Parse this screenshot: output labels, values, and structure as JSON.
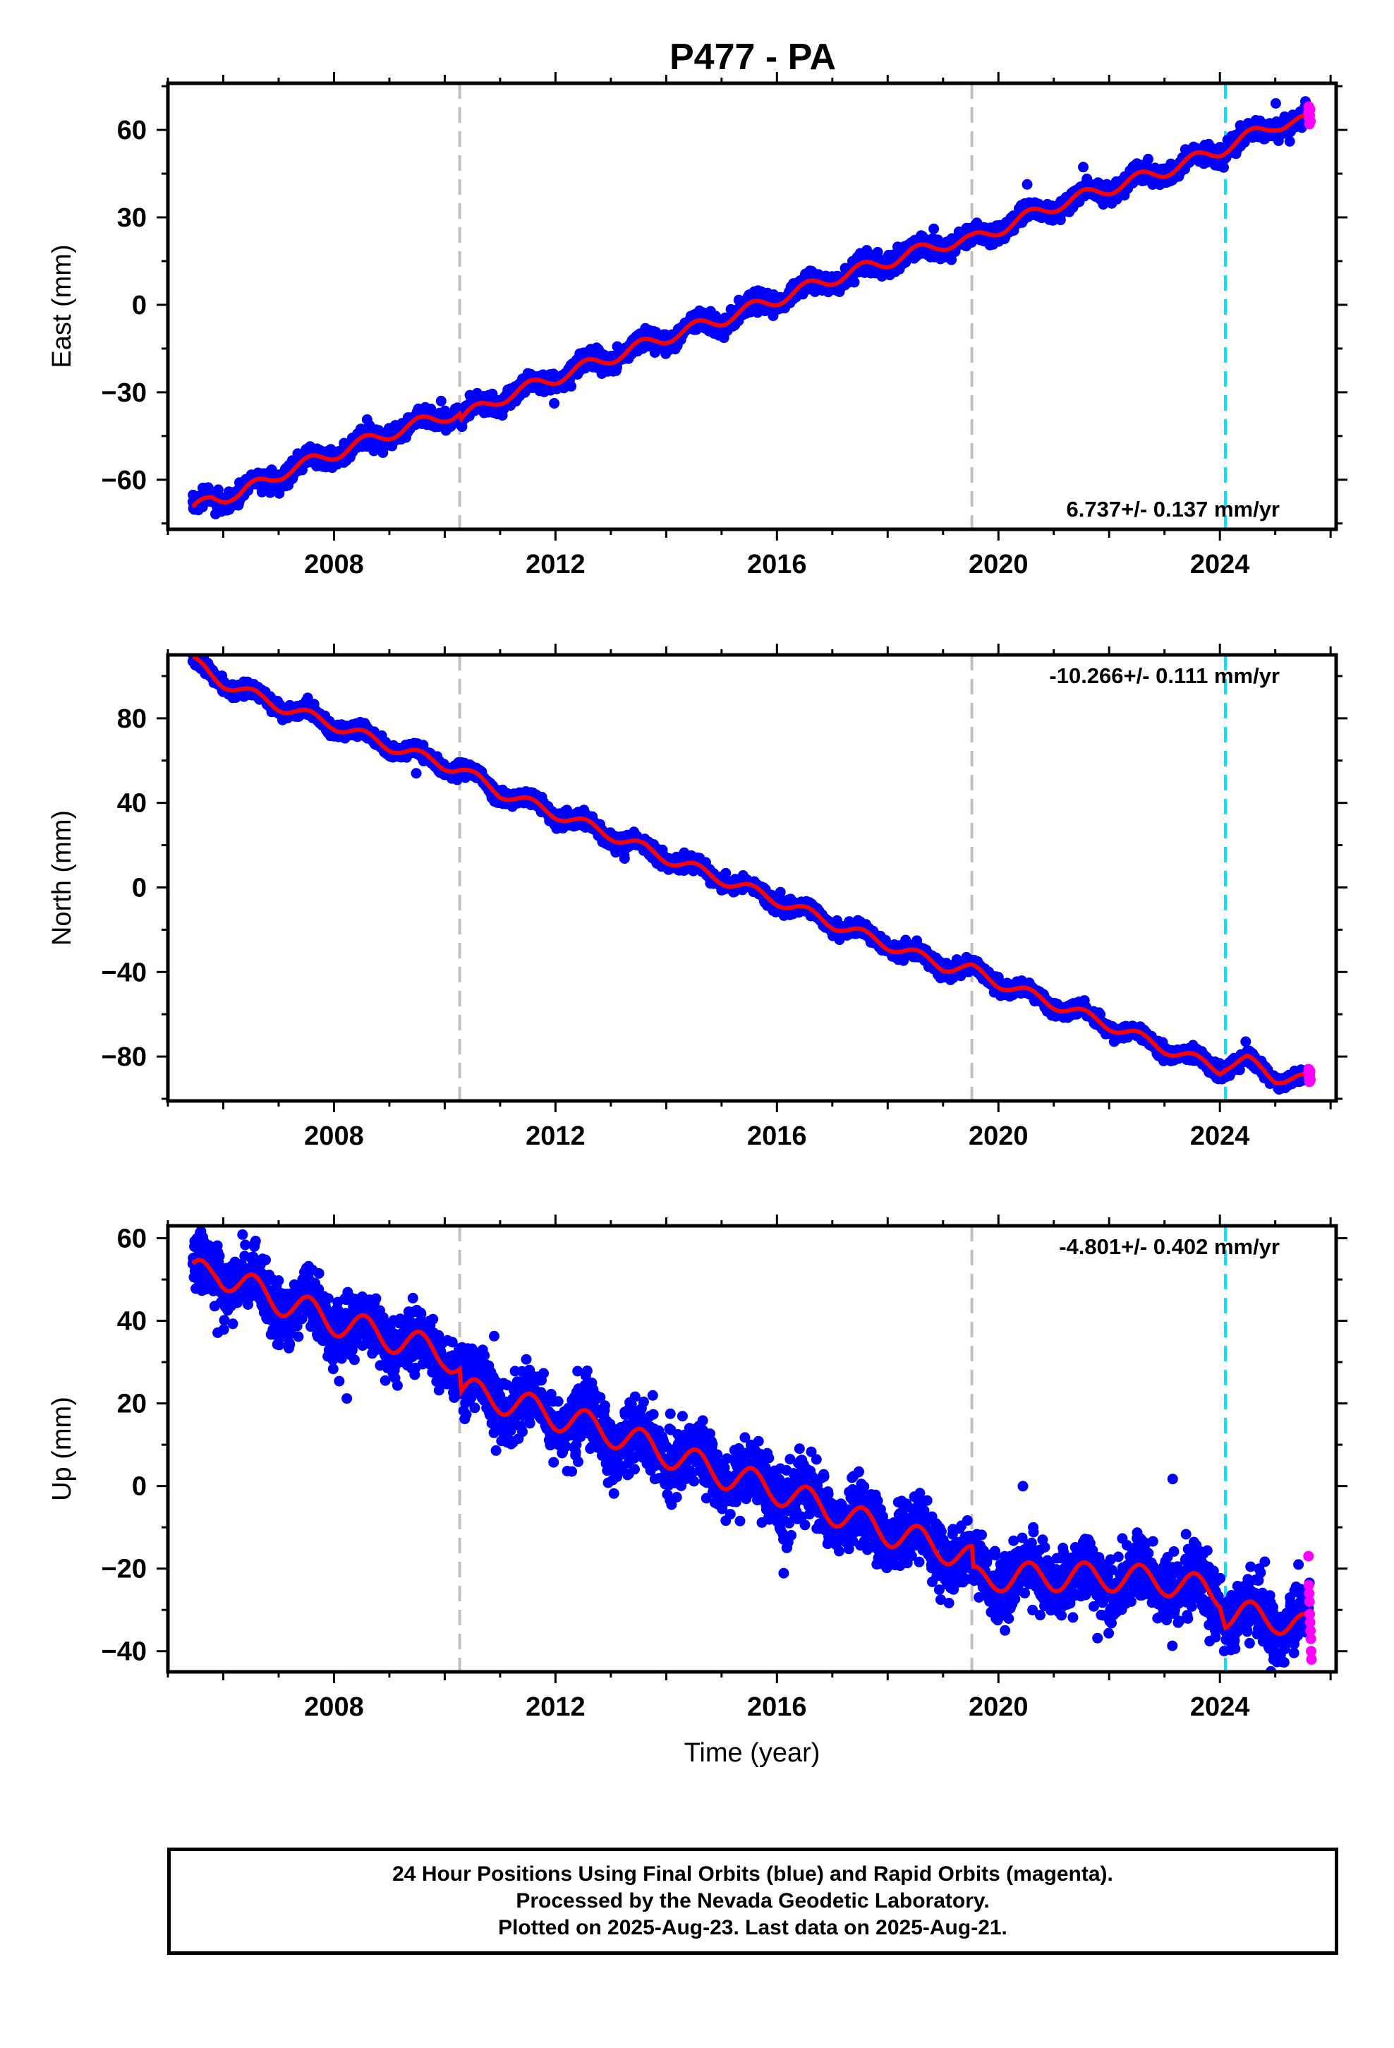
{
  "colors": {
    "final_orbits": "#0000ff",
    "rapid_orbits": "#ff00ff",
    "model": "#ff0000",
    "equipment_change": "#c0c0c0",
    "earthquake": "#00e5ff"
  },
  "footer": {
    "line1": "24 Hour Positions Using Final Orbits (blue) and Rapid Orbits (magenta).",
    "line2": "Processed by the Nevada Geodetic Laboratory.",
    "line3": "Plotted on 2025-Aug-23. Last data on 2025-Aug-21."
  },
  "chart_data": [
    {
      "type": "scatter",
      "title": "P477 - PA",
      "component": "east",
      "ylabel": "East (mm)",
      "xlabel": "",
      "xlim": [
        2005.0,
        2026.1
      ],
      "ylim": [
        -77,
        76
      ],
      "xticks": [
        2008,
        2012,
        2016,
        2020,
        2024
      ],
      "xtick_labels": [
        "2008",
        "2012",
        "2016",
        "2020",
        "2024"
      ],
      "yticks": [
        -60,
        -30,
        0,
        30,
        60
      ],
      "ytick_labels": [
        "−60",
        "−30",
        "0",
        "30",
        "60"
      ],
      "rate_label": "6.737+/- 0.137 mm/yr",
      "rate_position": "bottom-right",
      "start": 2005.45,
      "end": 2025.64,
      "seasonal_amplitude": 2.2,
      "scatter": 1.5,
      "vertical_lines": [
        {
          "x": 2010.27,
          "kind": "equipment_change"
        },
        {
          "x": 2019.52,
          "kind": "equipment_change"
        },
        {
          "x": 2024.1,
          "kind": "earthquake"
        }
      ],
      "model_knots": [
        [
          2005.45,
          -71
        ],
        [
          2005.8,
          -66
        ],
        [
          2006.3,
          -65
        ],
        [
          2007.0,
          -58
        ],
        [
          2008.0,
          -51
        ],
        [
          2009.0,
          -44
        ],
        [
          2010.0,
          -38
        ],
        [
          2010.27,
          -37
        ],
        [
          2010.3,
          -39
        ],
        [
          2011.0,
          -32
        ],
        [
          2012.0,
          -25
        ],
        [
          2013.0,
          -18
        ],
        [
          2014.0,
          -11
        ],
        [
          2015.0,
          -5
        ],
        [
          2016.0,
          2
        ],
        [
          2017.0,
          9
        ],
        [
          2018.0,
          15
        ],
        [
          2019.0,
          21
        ],
        [
          2019.52,
          22
        ],
        [
          2020.0,
          26
        ],
        [
          2021.0,
          34
        ],
        [
          2022.0,
          40
        ],
        [
          2023.0,
          46
        ],
        [
          2024.0,
          53
        ],
        [
          2024.1,
          54
        ],
        [
          2025.0,
          62
        ],
        [
          2025.64,
          63
        ]
      ]
    },
    {
      "type": "scatter",
      "title": "",
      "component": "north",
      "ylabel": "North (mm)",
      "xlabel": "",
      "xlim": [
        2005.0,
        2026.1
      ],
      "ylim": [
        -101,
        110
      ],
      "xticks": [
        2008,
        2012,
        2016,
        2020,
        2024
      ],
      "xtick_labels": [
        "2008",
        "2012",
        "2016",
        "2020",
        "2024"
      ],
      "yticks": [
        -80,
        -40,
        0,
        40,
        80
      ],
      "ytick_labels": [
        "−80",
        "−40",
        "0",
        "40",
        "80"
      ],
      "rate_label": "-10.266+/- 0.111 mm/yr",
      "rate_position": "top-right",
      "start": 2005.45,
      "end": 2025.64,
      "seasonal_amplitude": 2.6,
      "scatter": 1.6,
      "vertical_lines": [
        {
          "x": 2010.27,
          "kind": "equipment_change"
        },
        {
          "x": 2019.52,
          "kind": "equipment_change"
        },
        {
          "x": 2024.1,
          "kind": "earthquake"
        }
      ],
      "model_knots": [
        [
          2005.45,
          107
        ],
        [
          2005.8,
          100
        ],
        [
          2006.0,
          97
        ],
        [
          2007.0,
          86
        ],
        [
          2008.0,
          77
        ],
        [
          2009.0,
          67
        ],
        [
          2010.0,
          58
        ],
        [
          2010.27,
          56
        ],
        [
          2011.0,
          45
        ],
        [
          2012.0,
          35
        ],
        [
          2013.0,
          25
        ],
        [
          2014.0,
          14
        ],
        [
          2015.0,
          4
        ],
        [
          2016.0,
          -6
        ],
        [
          2017.0,
          -17
        ],
        [
          2018.0,
          -27
        ],
        [
          2019.0,
          -37
        ],
        [
          2019.52,
          -39
        ],
        [
          2020.0,
          -45
        ],
        [
          2021.0,
          -55
        ],
        [
          2022.0,
          -65
        ],
        [
          2023.0,
          -76
        ],
        [
          2024.0,
          -86
        ],
        [
          2024.1,
          -84
        ],
        [
          2024.5,
          -82
        ],
        [
          2025.0,
          -90
        ],
        [
          2025.64,
          -91
        ]
      ]
    },
    {
      "type": "scatter",
      "title": "",
      "component": "up",
      "ylabel": "Up (mm)",
      "xlabel": "Time (year)",
      "xlim": [
        2005.0,
        2026.1
      ],
      "ylim": [
        -45,
        63
      ],
      "xticks": [
        2008,
        2012,
        2016,
        2020,
        2024
      ],
      "xtick_labels": [
        "2008",
        "2012",
        "2016",
        "2020",
        "2024"
      ],
      "yticks": [
        -40,
        -20,
        0,
        20,
        40,
        60
      ],
      "ytick_labels": [
        "−40",
        "−20",
        "0",
        "20",
        "40",
        "60"
      ],
      "rate_label": "-4.801+/- 0.402 mm/yr",
      "rate_position": "top-right",
      "start": 2005.45,
      "end": 2025.64,
      "seasonal_amplitude": 3.5,
      "scatter": 3.8,
      "vertical_lines": [
        {
          "x": 2010.27,
          "kind": "equipment_change"
        },
        {
          "x": 2019.52,
          "kind": "equipment_change"
        },
        {
          "x": 2024.1,
          "kind": "earthquake"
        }
      ],
      "model_knots": [
        [
          2005.45,
          51
        ],
        [
          2005.9,
          52
        ],
        [
          2006.3,
          49
        ],
        [
          2007.0,
          45
        ],
        [
          2008.0,
          40
        ],
        [
          2009.0,
          36
        ],
        [
          2010.0,
          32
        ],
        [
          2010.27,
          29
        ],
        [
          2010.3,
          23
        ],
        [
          2011.0,
          21
        ],
        [
          2012.0,
          17
        ],
        [
          2013.0,
          13
        ],
        [
          2014.0,
          8
        ],
        [
          2015.0,
          3
        ],
        [
          2016.0,
          -1
        ],
        [
          2017.0,
          -6
        ],
        [
          2018.0,
          -11
        ],
        [
          2019.0,
          -15
        ],
        [
          2019.52,
          -18
        ],
        [
          2019.55,
          -23
        ],
        [
          2020.0,
          -22
        ],
        [
          2021.0,
          -22
        ],
        [
          2022.0,
          -22
        ],
        [
          2023.0,
          -23
        ],
        [
          2024.0,
          -26
        ],
        [
          2024.1,
          -31
        ],
        [
          2025.0,
          -32
        ],
        [
          2025.64,
          -35
        ]
      ],
      "rapid_points": [
        -17,
        -24,
        -26,
        -28,
        -31,
        -33,
        -35,
        -37,
        -40,
        -42
      ]
    }
  ]
}
